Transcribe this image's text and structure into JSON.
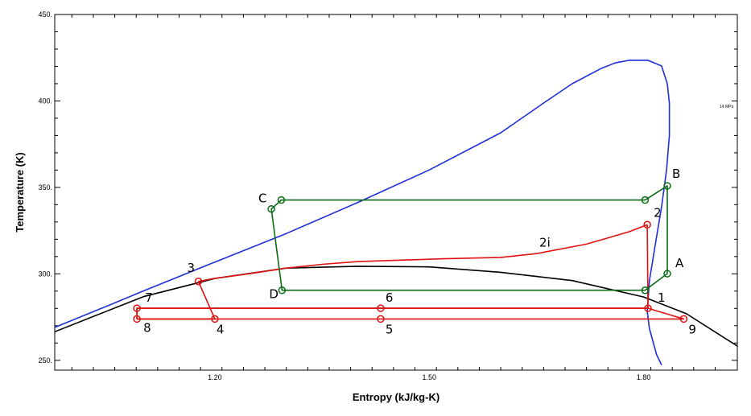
{
  "chart_data": {
    "type": "line",
    "title": "",
    "xlabel": "Entropy (kJ/kg-K)",
    "ylabel": "Temperature (K)",
    "xlim": [
      0.976,
      1.931
    ],
    "ylim": [
      244.3,
      450
    ],
    "x_ticks": [
      {
        "value": 1.2,
        "label": "1.20"
      },
      {
        "value": 1.5,
        "label": "1.50"
      },
      {
        "value": 1.8,
        "label": "1.80"
      }
    ],
    "y_ticks": [
      {
        "value": 250,
        "label": "250."
      },
      {
        "value": 300,
        "label": "300."
      },
      {
        "value": 350,
        "label": "350."
      },
      {
        "value": 400,
        "label": "400."
      },
      {
        "value": 450,
        "label": "450."
      }
    ],
    "grid": false,
    "isobar_label": "14 MPa",
    "colors": {
      "dome": "#1f2fd6",
      "isobar": "#000000",
      "red_cycle": "#e01010",
      "green_cycle": "#0a6b14"
    },
    "series": [
      {
        "key": "saturation-dome",
        "color": "#1f2fd6",
        "points": [
          [
            0.976,
            269
          ],
          [
            1.05,
            281.5
          ],
          [
            1.1,
            290.1
          ],
          [
            1.2,
            306.8
          ],
          [
            1.3,
            323.3
          ],
          [
            1.4,
            341.3
          ],
          [
            1.5,
            360.1
          ],
          [
            1.6,
            381.6
          ],
          [
            1.66,
            398.8
          ],
          [
            1.7,
            410.0
          ],
          [
            1.74,
            418.7
          ],
          [
            1.76,
            422.0
          ],
          [
            1.78,
            423.5
          ],
          [
            1.806,
            423.5
          ],
          [
            1.825,
            420.2
          ],
          [
            1.833,
            410.0
          ],
          [
            1.836,
            398.8
          ],
          [
            1.836,
            380.1
          ],
          [
            1.832,
            360.1
          ],
          [
            1.825,
            338.8
          ],
          [
            1.816,
            316.3
          ],
          [
            1.808,
            296.1
          ],
          [
            1.805,
            278.3
          ],
          [
            1.808,
            268.3
          ],
          [
            1.818,
            253.3
          ],
          [
            1.825,
            247.3
          ]
        ]
      },
      {
        "key": "isobar-14MPa",
        "color": "#000000",
        "points": [
          [
            0.976,
            266.5
          ],
          [
            1.1,
            286.8
          ],
          [
            1.2,
            297.3
          ],
          [
            1.3,
            303.3
          ],
          [
            1.4,
            304.4
          ],
          [
            1.5,
            304.0
          ],
          [
            1.6,
            300.9
          ],
          [
            1.7,
            296.1
          ],
          [
            1.8,
            286.6
          ],
          [
            1.86,
            276.9
          ],
          [
            1.931,
            258.2
          ]
        ]
      },
      {
        "key": "red-cycle-high",
        "color": "#e01010",
        "closed": false,
        "points": [
          [
            1.805,
            328.4
          ],
          [
            1.78,
            324.4
          ],
          [
            1.72,
            317.2
          ],
          [
            1.65,
            311.7
          ],
          [
            1.6,
            309.5
          ],
          [
            1.52,
            308.7
          ],
          [
            1.4,
            307.1
          ],
          [
            1.35,
            305.5
          ],
          [
            1.3,
            303.3
          ],
          [
            1.25,
            300.2
          ],
          [
            1.2,
            297.4
          ],
          [
            1.177,
            295.6
          ],
          [
            1.2,
            273.9
          ],
          [
            1.091,
            273.9
          ],
          [
            1.091,
            280.1
          ],
          [
            1.806,
            280.1
          ],
          [
            1.805,
            328.4
          ]
        ]
      },
      {
        "key": "red-cycle-low",
        "color": "#e01010",
        "closed": true,
        "points": [
          [
            1.091,
            273.9
          ],
          [
            1.856,
            273.9
          ],
          [
            1.806,
            280.1
          ],
          [
            1.091,
            280.1
          ]
        ]
      },
      {
        "key": "green-cycle",
        "color": "#0a6b14",
        "closed": true,
        "points": [
          [
            1.802,
            290.5
          ],
          [
            1.833,
            300.1
          ],
          [
            1.833,
            350.9
          ],
          [
            1.802,
            342.7
          ],
          [
            1.293,
            342.7
          ],
          [
            1.279,
            337.5
          ],
          [
            1.294,
            290.5
          ]
        ]
      }
    ],
    "markers": [
      {
        "label": "1",
        "x": 1.806,
        "y": 280.1,
        "color": "#e01010"
      },
      {
        "label": "2",
        "x": 1.805,
        "y": 328.4,
        "color": "#e01010"
      },
      {
        "label": "3",
        "x": 1.177,
        "y": 295.6,
        "color": "#e01010"
      },
      {
        "label": "4",
        "x": 1.2,
        "y": 273.9,
        "color": "#e01010"
      },
      {
        "label": "5",
        "x": 1.432,
        "y": 273.9,
        "color": "#e01010"
      },
      {
        "label": "6",
        "x": 1.432,
        "y": 280.1,
        "color": "#e01010"
      },
      {
        "label": "7",
        "x": 1.091,
        "y": 280.1,
        "color": "#e01010"
      },
      {
        "label": "8",
        "x": 1.091,
        "y": 273.9,
        "color": "#e01010"
      },
      {
        "label": "9",
        "x": 1.856,
        "y": 273.9,
        "color": "#e01010"
      },
      {
        "label": "A",
        "x": 1.833,
        "y": 300.1,
        "color": "#0a6b14"
      },
      {
        "label": "B",
        "x": 1.833,
        "y": 350.9,
        "color": "#0a6b14"
      },
      {
        "label": "C",
        "x": 1.279,
        "y": 337.5,
        "color": "#0a6b14"
      },
      {
        "label": "D",
        "x": 1.294,
        "y": 290.5,
        "color": "#0a6b14"
      },
      {
        "label": "",
        "x": 1.293,
        "y": 342.7,
        "color": "#0a6b14"
      },
      {
        "label": "",
        "x": 1.802,
        "y": 342.7,
        "color": "#0a6b14"
      },
      {
        "label": "",
        "x": 1.802,
        "y": 290.5,
        "color": "#0a6b14"
      }
    ],
    "annotations": [
      {
        "text": "2i",
        "x": 1.654,
        "y": 315.7
      }
    ]
  }
}
